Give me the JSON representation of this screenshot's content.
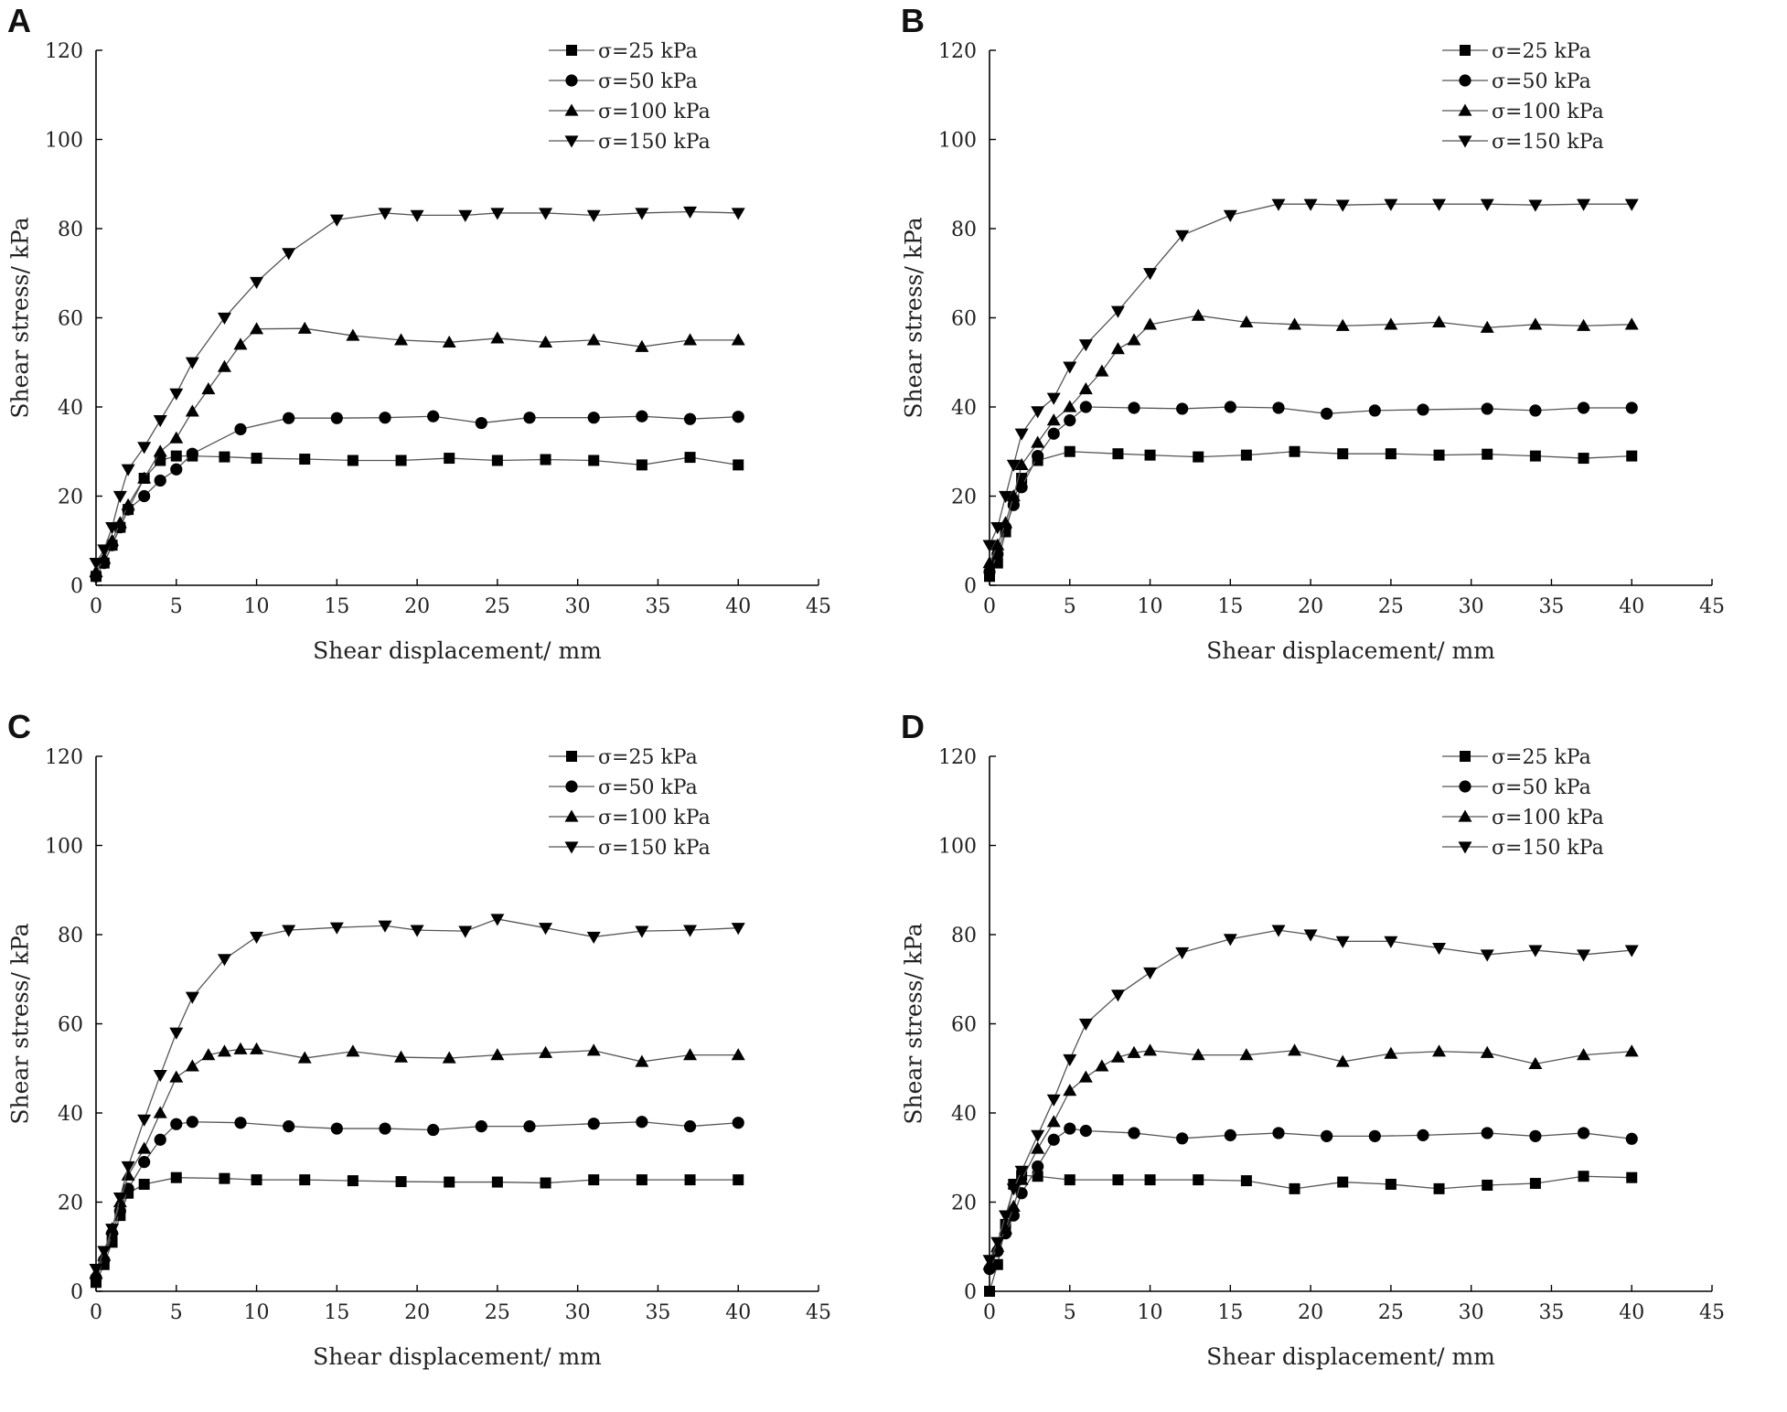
{
  "chart_data": [
    {
      "panel_label": "A",
      "type": "line",
      "xlabel": "Shear displacement/ mm",
      "ylabel": "Shear stress/ kPa",
      "xlim": [
        0,
        45
      ],
      "ylim": [
        0,
        120
      ],
      "xticks": [
        "0",
        "5",
        "10",
        "15",
        "20",
        "25",
        "30",
        "35",
        "40",
        "45"
      ],
      "yticks": [
        "0",
        "20",
        "40",
        "60",
        "80",
        "100",
        "120"
      ],
      "legend_position": "top-right",
      "series": [
        {
          "name": "σ=25 kPa",
          "marker": "square",
          "x": [
            0,
            0.5,
            1,
            1.5,
            2,
            3,
            4,
            5,
            6,
            8,
            10,
            13,
            16,
            19,
            22,
            25,
            28,
            31,
            34,
            37,
            40
          ],
          "y": [
            2,
            5,
            9,
            13,
            17,
            24,
            28,
            29,
            29,
            28.8,
            28.5,
            28.3,
            28,
            28,
            28.5,
            28,
            28.2,
            28,
            27,
            28.7,
            27
          ]
        },
        {
          "name": "σ=50 kPa",
          "marker": "circle",
          "x": [
            0,
            0.5,
            1,
            1.5,
            2,
            3,
            4,
            5,
            6,
            9,
            12,
            15,
            18,
            21,
            24,
            27,
            31,
            34,
            37,
            40
          ],
          "y": [
            2,
            5,
            9,
            13,
            17,
            20,
            23.5,
            26,
            29.5,
            35,
            37.5,
            37.5,
            37.6,
            37.9,
            36.4,
            37.6,
            37.6,
            37.9,
            37.3,
            37.8
          ]
        },
        {
          "name": "σ=100 kPa",
          "marker": "triangle-up",
          "x": [
            0,
            0.5,
            1,
            1.5,
            2,
            3,
            4,
            5,
            6,
            7,
            8,
            9,
            10,
            13,
            16,
            19,
            22,
            25,
            28,
            31,
            34,
            37,
            40
          ],
          "y": [
            3,
            6,
            10,
            14,
            18,
            24,
            30,
            33,
            39,
            44,
            49,
            54,
            57.5,
            57.6,
            56,
            55,
            54.5,
            55.4,
            54.5,
            55,
            53.5,
            55,
            55
          ]
        },
        {
          "name": "σ=150 kPa",
          "marker": "triangle-down",
          "x": [
            0,
            0.5,
            1,
            1.5,
            2,
            3,
            4,
            5,
            6,
            8,
            10,
            12,
            15,
            18,
            20,
            23,
            25,
            28,
            31,
            34,
            37,
            40
          ],
          "y": [
            5,
            8,
            13,
            20,
            26,
            31,
            37,
            43,
            50,
            60,
            68,
            74.5,
            82,
            83.5,
            83,
            83,
            83.5,
            83.5,
            83,
            83.5,
            83.8,
            83.5
          ]
        }
      ]
    },
    {
      "panel_label": "B",
      "type": "line",
      "xlabel": "Shear displacement/ mm",
      "ylabel": "Shear stress/ kPa",
      "xlim": [
        0,
        45
      ],
      "ylim": [
        0,
        120
      ],
      "xticks": [
        "0",
        "5",
        "10",
        "15",
        "20",
        "25",
        "30",
        "35",
        "40",
        "45"
      ],
      "yticks": [
        "0",
        "20",
        "40",
        "60",
        "80",
        "100",
        "120"
      ],
      "legend_position": "top-right",
      "series": [
        {
          "name": "σ=25 kPa",
          "marker": "square",
          "x": [
            0,
            0.5,
            1,
            1.5,
            2,
            3,
            5,
            8,
            10,
            13,
            16,
            19,
            22,
            25,
            28,
            31,
            34,
            37,
            40
          ],
          "y": [
            2,
            5,
            12,
            19,
            24,
            28,
            30,
            29.5,
            29.2,
            28.8,
            29.2,
            30,
            29.5,
            29.5,
            29.2,
            29.4,
            29,
            28.5,
            29
          ]
        },
        {
          "name": "σ=50 kPa",
          "marker": "circle",
          "x": [
            0,
            0.5,
            1,
            1.5,
            2,
            3,
            4,
            5,
            6,
            9,
            12,
            15,
            18,
            21,
            24,
            27,
            31,
            34,
            37,
            40
          ],
          "y": [
            3,
            7,
            13,
            18,
            22,
            29,
            34,
            37,
            40,
            39.8,
            39.6,
            40,
            39.8,
            38.5,
            39.2,
            39.4,
            39.6,
            39.2,
            39.8,
            39.8
          ]
        },
        {
          "name": "σ=100 kPa",
          "marker": "triangle-up",
          "x": [
            0,
            0.5,
            1,
            1.5,
            2,
            3,
            4,
            5,
            6,
            7,
            8,
            9,
            10,
            13,
            16,
            19,
            22,
            25,
            28,
            31,
            34,
            37,
            40
          ],
          "y": [
            5,
            9,
            14,
            20,
            27,
            32,
            37,
            40,
            44,
            48,
            53,
            55,
            58.5,
            60.5,
            59,
            58.5,
            58.2,
            58.5,
            59,
            57.8,
            58.5,
            58.2,
            58.5
          ]
        },
        {
          "name": "σ=150 kPa",
          "marker": "triangle-down",
          "x": [
            0,
            0.5,
            1,
            1.5,
            2,
            3,
            4,
            5,
            6,
            8,
            10,
            12,
            15,
            18,
            20,
            22,
            25,
            28,
            31,
            34,
            37,
            40
          ],
          "y": [
            9,
            13,
            20,
            27,
            34,
            39,
            42,
            49,
            54,
            61.5,
            70,
            78.5,
            83,
            85.5,
            85.5,
            85.3,
            85.5,
            85.5,
            85.5,
            85.3,
            85.5,
            85.5
          ]
        }
      ]
    },
    {
      "panel_label": "C",
      "type": "line",
      "xlabel": "Shear displacement/ mm",
      "ylabel": "Shear stress/ kPa",
      "xlim": [
        0,
        45
      ],
      "ylim": [
        0,
        120
      ],
      "xticks": [
        "0",
        "5",
        "10",
        "15",
        "20",
        "25",
        "30",
        "35",
        "40",
        "45"
      ],
      "yticks": [
        "0",
        "20",
        "40",
        "60",
        "80",
        "100",
        "120"
      ],
      "legend_position": "top-right",
      "series": [
        {
          "name": "σ=25 kPa",
          "marker": "square",
          "x": [
            0,
            0.5,
            1,
            1.5,
            2,
            3,
            5,
            8,
            10,
            13,
            16,
            19,
            22,
            25,
            28,
            31,
            34,
            37,
            40
          ],
          "y": [
            2,
            6,
            11,
            17,
            22,
            24,
            25.5,
            25.3,
            25,
            25,
            24.8,
            24.6,
            24.5,
            24.5,
            24.3,
            25,
            25,
            25,
            25
          ]
        },
        {
          "name": "σ=50 kPa",
          "marker": "circle",
          "x": [
            0,
            0.5,
            1,
            1.5,
            2,
            3,
            4,
            5,
            6,
            9,
            12,
            15,
            18,
            21,
            24,
            27,
            31,
            34,
            37,
            40
          ],
          "y": [
            3,
            7,
            13,
            18,
            23,
            29,
            34,
            37.5,
            38,
            37.8,
            37,
            36.5,
            36.5,
            36.2,
            37,
            37,
            37.6,
            38,
            37,
            37.8
          ]
        },
        {
          "name": "σ=100 kPa",
          "marker": "triangle-up",
          "x": [
            0,
            0.5,
            1,
            1.5,
            2,
            3,
            4,
            5,
            6,
            7,
            8,
            9,
            10,
            13,
            16,
            19,
            22,
            25,
            28,
            31,
            34,
            37,
            40
          ],
          "y": [
            4,
            8,
            14,
            20,
            26,
            32,
            40,
            48,
            50.5,
            53,
            53.8,
            54.3,
            54.3,
            52.3,
            53.8,
            52.5,
            52.3,
            53,
            53.5,
            54,
            51.5,
            53,
            53
          ]
        },
        {
          "name": "σ=150 kPa",
          "marker": "triangle-down",
          "x": [
            0,
            0.5,
            1,
            1.5,
            2,
            3,
            4,
            5,
            6,
            8,
            10,
            12,
            15,
            18,
            20,
            23,
            25,
            28,
            31,
            34,
            37,
            40
          ],
          "y": [
            5,
            9,
            14,
            21,
            28,
            38.5,
            48.5,
            58,
            66,
            74.5,
            79.5,
            81,
            81.6,
            82,
            81,
            80.8,
            83.5,
            81.5,
            79.5,
            80.8,
            81,
            81.5
          ]
        }
      ]
    },
    {
      "panel_label": "D",
      "type": "line",
      "xlabel": "Shear displacement/ mm",
      "ylabel": "Shear stress/ kPa",
      "xlim": [
        0,
        45
      ],
      "ylim": [
        0,
        120
      ],
      "xticks": [
        "0",
        "5",
        "10",
        "15",
        "20",
        "25",
        "30",
        "35",
        "40",
        "45"
      ],
      "yticks": [
        "0",
        "20",
        "40",
        "60",
        "80",
        "100",
        "120"
      ],
      "legend_position": "top-right",
      "series": [
        {
          "name": "σ=25 kPa",
          "marker": "square",
          "x": [
            0,
            0.5,
            1,
            1.5,
            2,
            3,
            5,
            8,
            10,
            13,
            16,
            19,
            22,
            25,
            28,
            31,
            34,
            37,
            40
          ],
          "y": [
            0,
            6,
            15,
            24,
            26,
            25.8,
            25,
            25,
            25,
            25,
            24.8,
            23,
            24.5,
            24,
            23,
            23.8,
            24.2,
            25.8,
            25.5
          ]
        },
        {
          "name": "σ=50 kPa",
          "marker": "circle",
          "x": [
            0,
            0.5,
            1,
            1.5,
            2,
            3,
            4,
            5,
            6,
            9,
            12,
            15,
            18,
            21,
            24,
            27,
            31,
            34,
            37,
            40
          ],
          "y": [
            5,
            9,
            13,
            17,
            22,
            28,
            34,
            36.5,
            36,
            35.5,
            34.3,
            35,
            35.5,
            34.8,
            34.8,
            35,
            35.5,
            34.8,
            35.5,
            34.2
          ]
        },
        {
          "name": "σ=100 kPa",
          "marker": "triangle-up",
          "x": [
            0,
            0.5,
            1,
            1.5,
            2,
            3,
            4,
            5,
            6,
            7,
            8,
            9,
            10,
            13,
            16,
            19,
            22,
            25,
            28,
            31,
            34,
            37,
            40
          ],
          "y": [
            6,
            10,
            14,
            19,
            25,
            32,
            38,
            45,
            48,
            50.5,
            52.5,
            53.5,
            54,
            53,
            53,
            54,
            51.5,
            53.3,
            53.8,
            53.5,
            51,
            53,
            53.8
          ]
        },
        {
          "name": "σ=150 kPa",
          "marker": "triangle-down",
          "x": [
            0,
            0.5,
            1,
            1.5,
            2,
            3,
            4,
            5,
            6,
            8,
            10,
            12,
            15,
            18,
            20,
            22,
            25,
            28,
            31,
            34,
            37,
            40
          ],
          "y": [
            7,
            11,
            17,
            23,
            27,
            35,
            43,
            52,
            60,
            66.5,
            71.5,
            76,
            79,
            81,
            80,
            78.5,
            78.5,
            77,
            75.5,
            76.5,
            75.5,
            76.5
          ]
        }
      ]
    }
  ]
}
